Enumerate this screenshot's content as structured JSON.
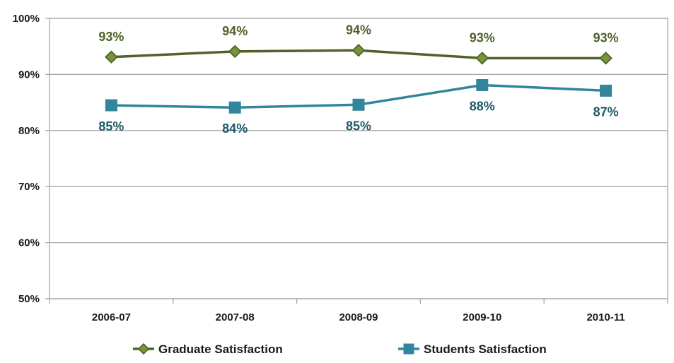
{
  "chart_data": {
    "type": "line",
    "title": "",
    "xlabel": "",
    "ylabel": "",
    "categories": [
      "2006-07",
      "2007-08",
      "2008-09",
      "2009-10",
      "2010-11"
    ],
    "ylim": [
      50,
      100
    ],
    "yticks": [
      50,
      60,
      70,
      80,
      90,
      100
    ],
    "ytick_labels": [
      "50%",
      "60%",
      "70%",
      "80%",
      "90%",
      "100%"
    ],
    "grid": "horizontal",
    "legend_position": "bottom",
    "series": [
      {
        "name": "Graduate Satisfaction",
        "values": [
          93.1,
          94.1,
          94.3,
          92.9,
          92.9
        ],
        "labels": [
          "93%",
          "94%",
          "94%",
          "93%",
          "93%"
        ],
        "label_position": "above",
        "marker": "diamond",
        "color": "#4f6228",
        "marker_fill": "#77933c"
      },
      {
        "name": "Students Satisfaction",
        "values": [
          84.5,
          84.1,
          84.6,
          88.1,
          87.1
        ],
        "labels": [
          "85%",
          "84%",
          "85%",
          "88%",
          "87%"
        ],
        "label_position": "below",
        "marker": "square",
        "color": "#31859c",
        "marker_fill": "#31859c"
      }
    ]
  },
  "colors": {
    "grid": "#a6a6a6",
    "frame": "#a6a6a6",
    "graduate_label": "#4f6228",
    "students_label": "#215968"
  }
}
